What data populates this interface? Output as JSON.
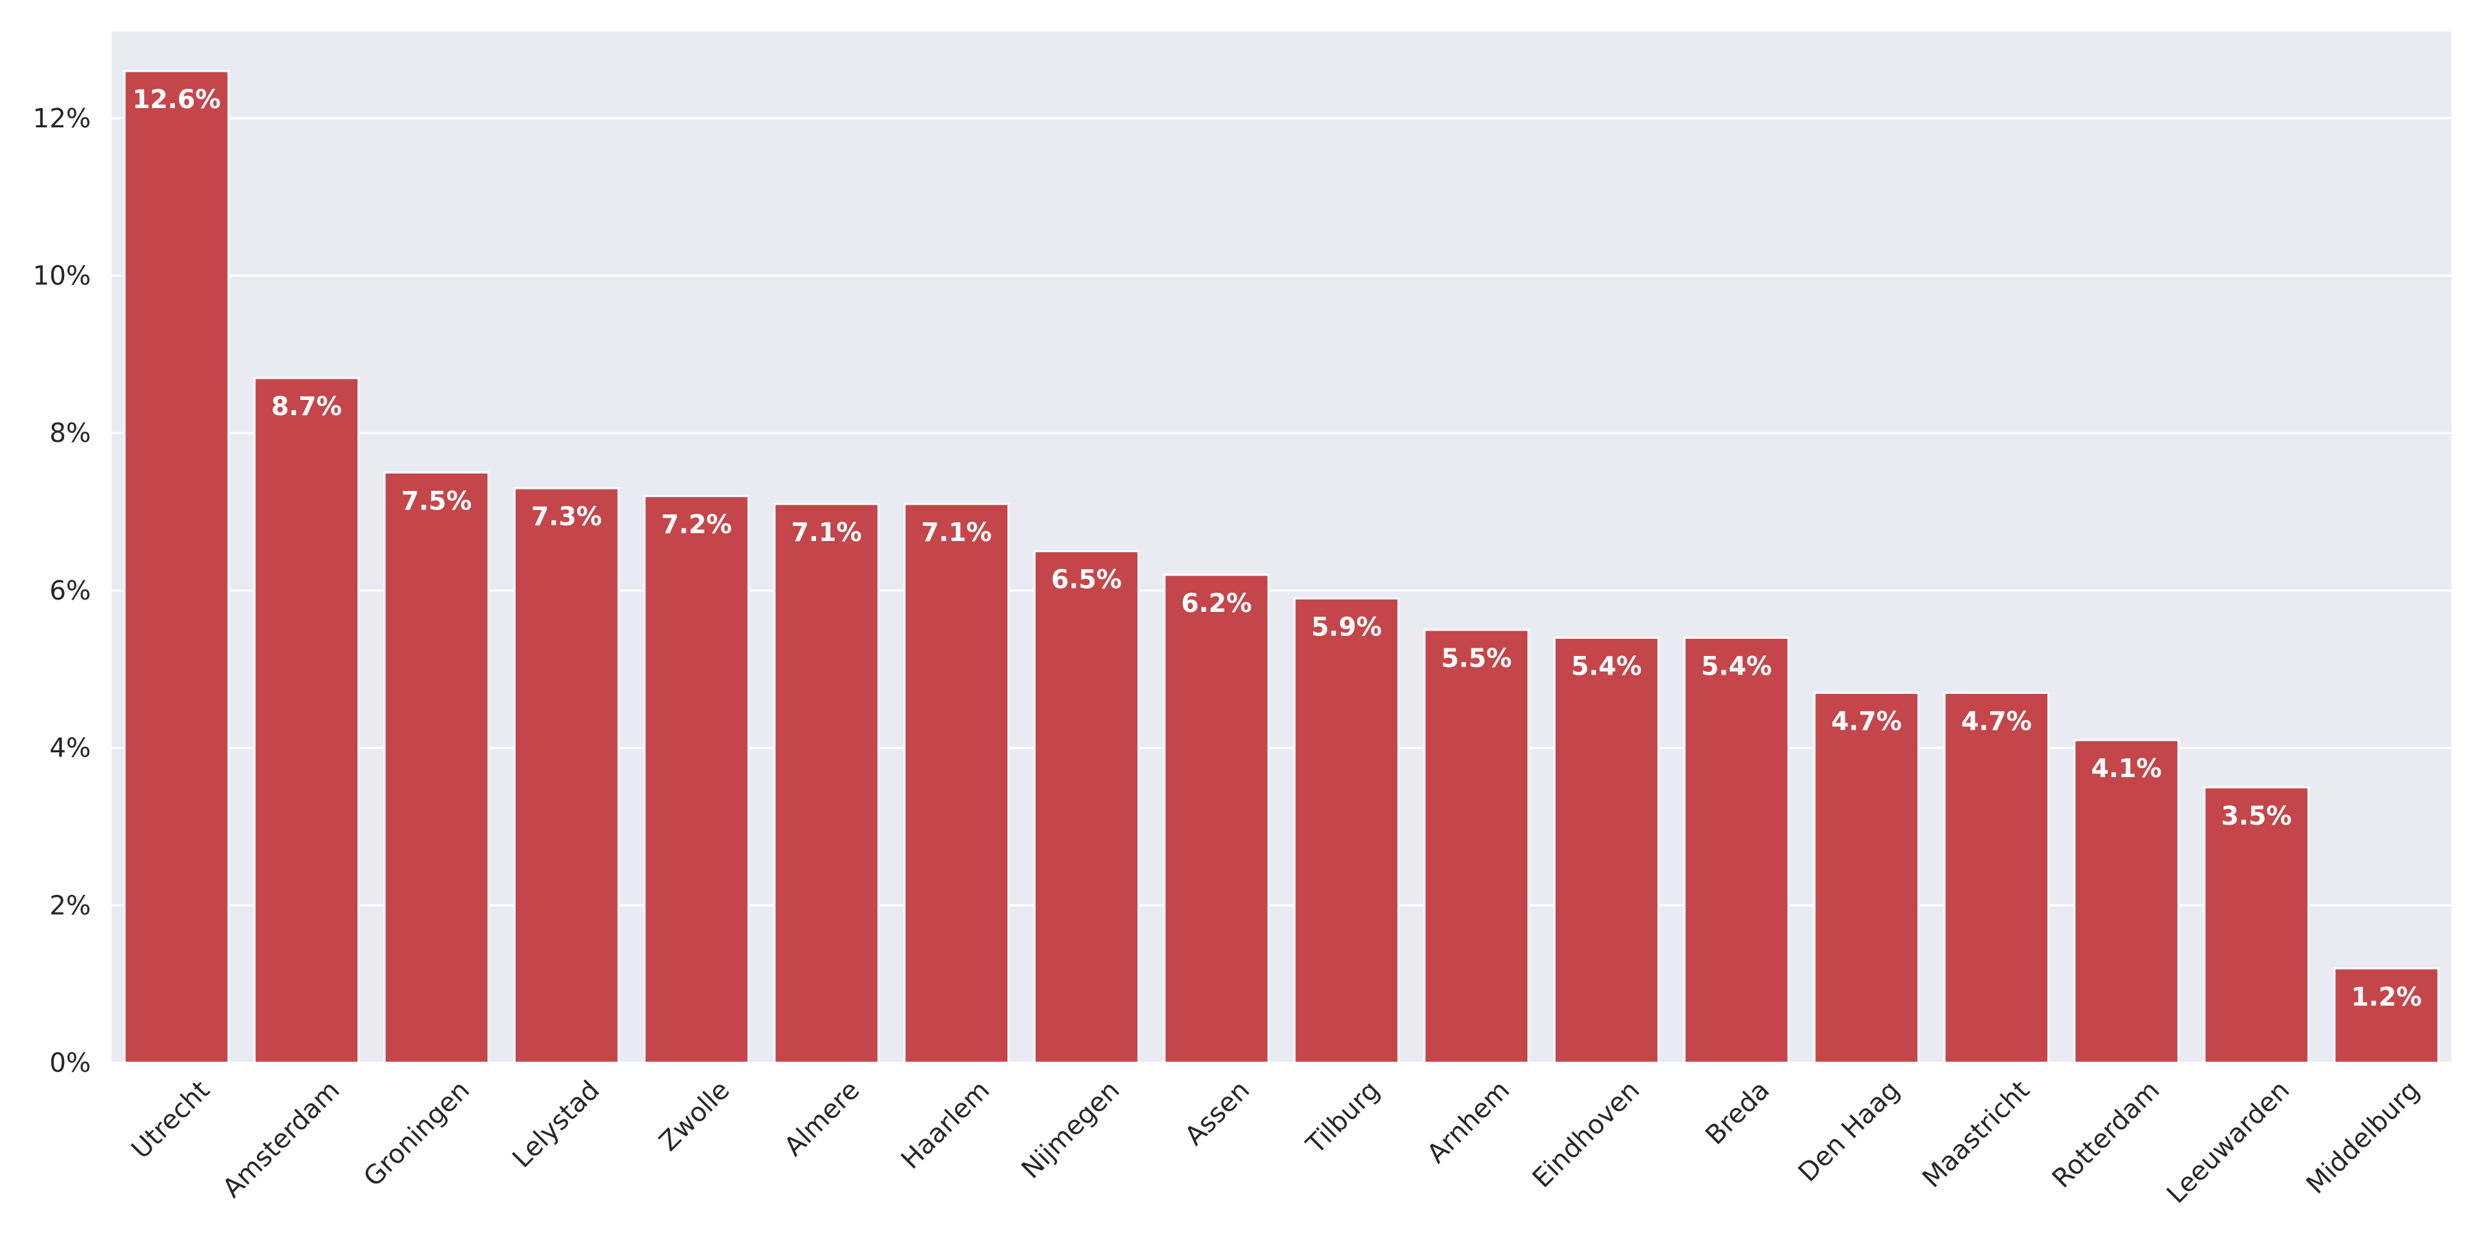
{
  "chart_data": {
    "type": "bar",
    "title": "",
    "xlabel": "",
    "ylabel": "",
    "categories": [
      "Utrecht",
      "Amsterdam",
      "Groningen",
      "Lelystad",
      "Zwolle",
      "Almere",
      "Haarlem",
      "Nijmegen",
      "Assen",
      "Tilburg",
      "Arnhem",
      "Eindhoven",
      "Breda",
      "Den Haag",
      "Maastricht",
      "Rotterdam",
      "Leeuwarden",
      "Middelburg"
    ],
    "values": [
      12.6,
      8.7,
      7.5,
      7.3,
      7.2,
      7.1,
      7.1,
      6.5,
      6.2,
      5.9,
      5.5,
      5.4,
      5.4,
      4.7,
      4.7,
      4.1,
      3.5,
      1.2
    ],
    "value_labels": [
      "12.6%",
      "8.7%",
      "7.5%",
      "7.3%",
      "7.2%",
      "7.1%",
      "7.1%",
      "6.5%",
      "6.2%",
      "5.9%",
      "5.5%",
      "5.4%",
      "5.4%",
      "4.7%",
      "4.7%",
      "4.1%",
      "3.5%",
      "1.2%"
    ],
    "ylim": [
      0,
      13.1
    ],
    "yticks": [
      0,
      2,
      4,
      6,
      8,
      10,
      12
    ],
    "ytick_labels": [
      "0%",
      "2%",
      "4%",
      "6%",
      "8%",
      "10%",
      "12%"
    ],
    "grid": true,
    "legend": "none",
    "colors": {
      "bar": "#c4464a",
      "plot_background": "#eaeaf2",
      "grid": "#ffffff",
      "data_label": "#ffffff",
      "tick_label": "#262626"
    }
  }
}
